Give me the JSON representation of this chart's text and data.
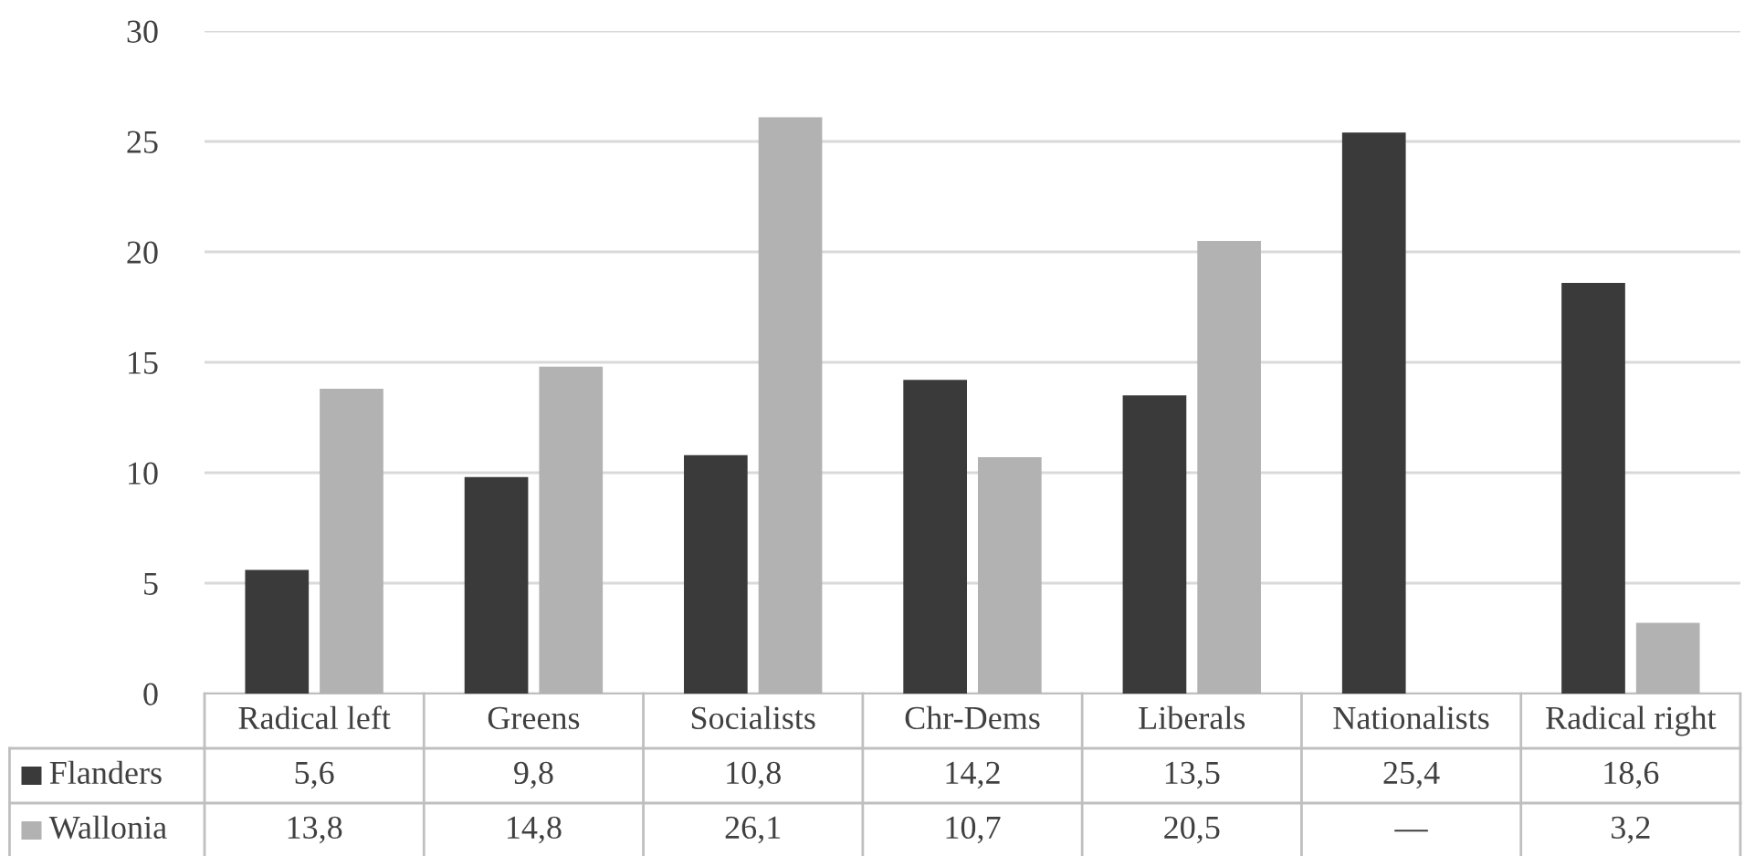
{
  "chart_data": {
    "type": "bar",
    "categories": [
      "Radical left",
      "Greens",
      "Socialists",
      "Chr-Dems",
      "Liberals",
      "Nationalists",
      "Radical right"
    ],
    "series": [
      {
        "name": "Flanders",
        "color": "#3a3a3a",
        "values": [
          5.6,
          9.8,
          10.8,
          14.2,
          13.5,
          25.4,
          18.6
        ],
        "value_labels": [
          "5,6",
          "9,8",
          "10,8",
          "14,2",
          "13,5",
          "25,4",
          "18,6"
        ]
      },
      {
        "name": "Wallonia",
        "color": "#b2b2b2",
        "values": [
          13.8,
          14.8,
          26.1,
          10.7,
          20.5,
          null,
          3.2
        ],
        "value_labels": [
          "13,8",
          "14,8",
          "26,1",
          "10,7",
          "20,5",
          "—",
          "3,2"
        ]
      }
    ],
    "ylim": [
      0,
      30
    ],
    "yticks": [
      0,
      5,
      10,
      15,
      20,
      25,
      30
    ],
    "grid": "y",
    "legend": "bottom"
  }
}
